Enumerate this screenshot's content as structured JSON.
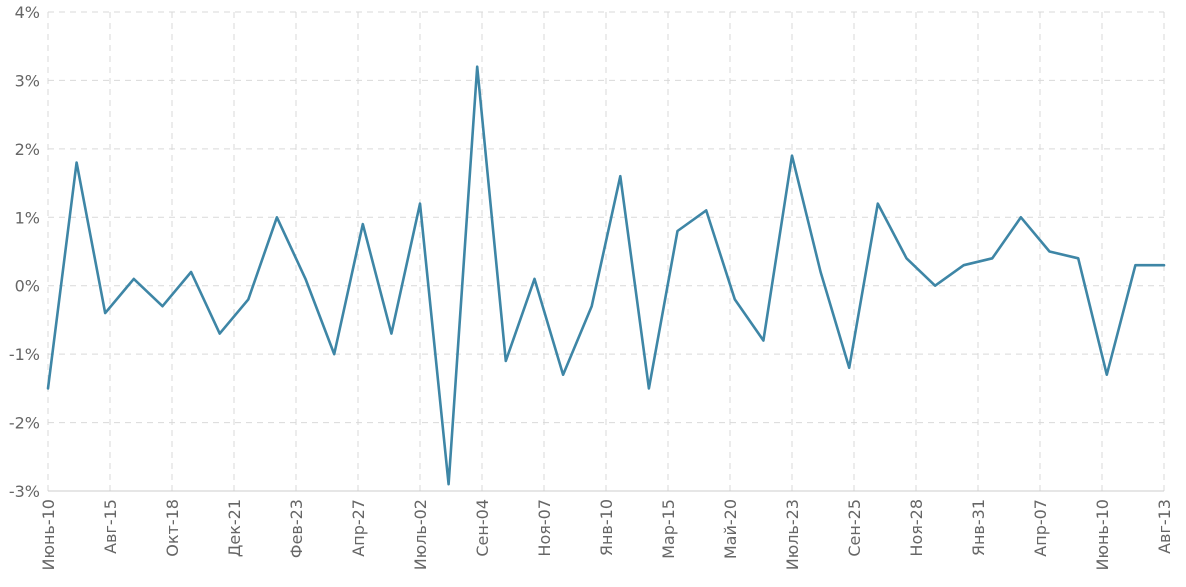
{
  "colors": {
    "line": "#3e86a6",
    "grid": "#d9d9d9",
    "text": "#666666"
  },
  "chart_data": {
    "type": "line",
    "title": "",
    "xlabel": "",
    "ylabel": "",
    "ylim": [
      -3,
      4
    ],
    "yticks": [
      -3,
      -2,
      -1,
      0,
      1,
      2,
      3,
      4
    ],
    "ytick_labels": [
      "-3%",
      "-2%",
      "-1%",
      "0%",
      "1%",
      "2%",
      "3%",
      "4%"
    ],
    "grid": true,
    "xtick_labels": [
      "Июнь-10",
      "Авг-15",
      "Окт-18",
      "Дек-21",
      "Фев-23",
      "Апр-27",
      "Июль-02",
      "Сен-04",
      "Ноя-07",
      "Янв-10",
      "Мар-15",
      "Май-20",
      "Июль-23",
      "Сен-25",
      "Ноя-28",
      "Янв-31",
      "Апр-07",
      "Июнь-10",
      "Авг-13"
    ],
    "series": [
      {
        "values": [
          -1.5,
          1.8,
          -0.4,
          0.1,
          -0.3,
          0.2,
          -0.7,
          -0.2,
          1.0,
          0.1,
          -1.0,
          0.9,
          -0.7,
          1.2,
          -2.9,
          3.2,
          -1.1,
          0.1,
          -1.3,
          -0.3,
          1.6,
          -1.5,
          0.8,
          1.1,
          -0.2,
          -0.8,
          1.9,
          0.2,
          -1.2,
          1.2,
          0.4,
          0.0,
          0.3,
          0.4,
          1.0,
          0.5,
          0.4,
          -1.3,
          0.3,
          0.3
        ]
      }
    ]
  }
}
